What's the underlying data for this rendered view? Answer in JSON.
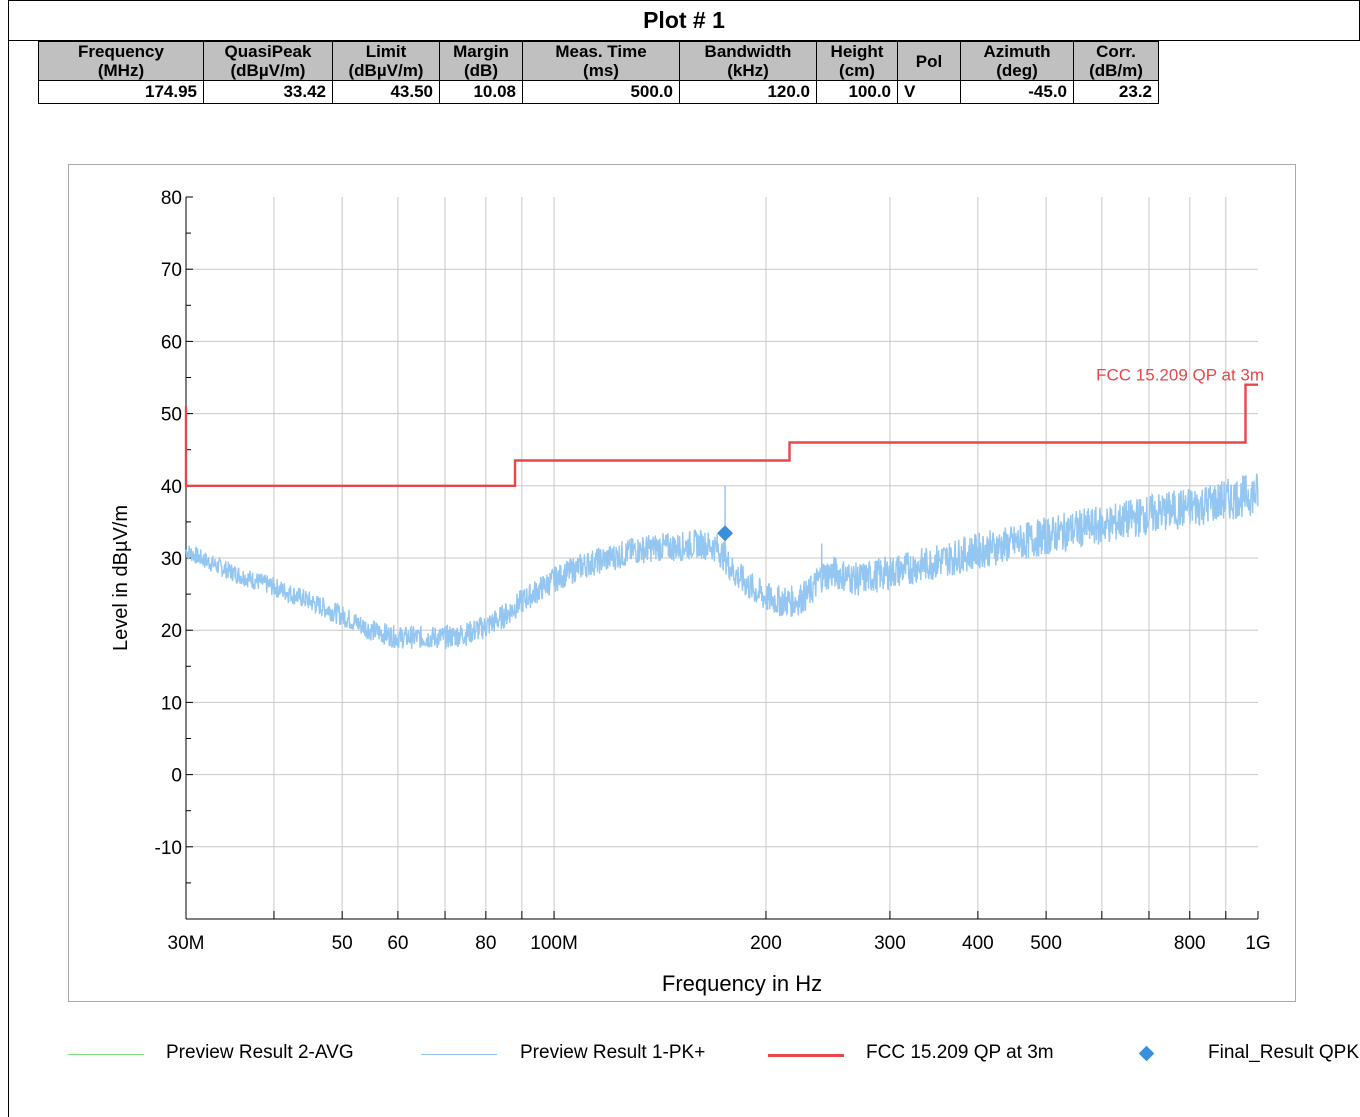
{
  "header": {
    "title": "Plot # 1"
  },
  "table": {
    "columns": [
      {
        "name": "Frequency",
        "unit": "(MHz)"
      },
      {
        "name": "QuasiPeak",
        "unit": "(dBµV/m)"
      },
      {
        "name": "Limit",
        "unit": "(dBµV/m)"
      },
      {
        "name": "Margin",
        "unit": "(dB)"
      },
      {
        "name": "Meas. Time",
        "unit": "(ms)"
      },
      {
        "name": "Bandwidth",
        "unit": "(kHz)"
      },
      {
        "name": "Height",
        "unit": "(cm)"
      },
      {
        "name": "Pol",
        "unit": ""
      },
      {
        "name": "Azimuth",
        "unit": "(deg)"
      },
      {
        "name": "Corr.",
        "unit": "(dB/m)"
      }
    ],
    "row": [
      "174.95",
      "33.42",
      "43.50",
      "10.08",
      "500.0",
      "120.0",
      "100.0",
      "V",
      "-45.0",
      "23.2"
    ]
  },
  "chart_data": {
    "type": "line",
    "xlabel": "Frequency in Hz",
    "ylabel": "Level in dBµV/m",
    "xscale": "log",
    "xlim": [
      30,
      1000
    ],
    "ylim": [
      -20,
      80
    ],
    "yticks": [
      "-10",
      "0",
      "10",
      "20",
      "30",
      "40",
      "50",
      "60",
      "70",
      "80"
    ],
    "xtick_labels": [
      {
        "x": 30,
        "label": "30M"
      },
      {
        "x": 50,
        "label": "50"
      },
      {
        "x": 60,
        "label": "60"
      },
      {
        "x": 80,
        "label": "80"
      },
      {
        "x": 100,
        "label": "100M"
      },
      {
        "x": 200,
        "label": "200"
      },
      {
        "x": 300,
        "label": "300"
      },
      {
        "x": 400,
        "label": "400"
      },
      {
        "x": 500,
        "label": "500"
      },
      {
        "x": 800,
        "label": "800"
      },
      {
        "x": 1000,
        "label": "1G"
      }
    ],
    "grid": true,
    "limit_annotation": "FCC 15.209 QP at 3m",
    "series": [
      {
        "name": "FCC 15.209 QP at 3m",
        "color": "#e8474a",
        "style": "step",
        "x": [
          30,
          30,
          88,
          88,
          216,
          216,
          960,
          960,
          1000
        ],
        "y": [
          51,
          40,
          40,
          43.5,
          43.5,
          46,
          46,
          54,
          54
        ]
      },
      {
        "name": "Preview Result 1-PK+",
        "color": "#93c6f0",
        "style": "noisy",
        "x": [
          30,
          33,
          36,
          40,
          45,
          50,
          55,
          60,
          65,
          70,
          75,
          80,
          85,
          90,
          100,
          110,
          120,
          130,
          140,
          150,
          160,
          170,
          175,
          180,
          190,
          200,
          210,
          220,
          230,
          240,
          250,
          270,
          300,
          350,
          400,
          450,
          500,
          550,
          600,
          700,
          800,
          900,
          1000
        ],
        "y": [
          31,
          29,
          27.5,
          26,
          24,
          22,
          20,
          19,
          19,
          19,
          19.5,
          20.5,
          22,
          24,
          27,
          29,
          30,
          31,
          31.5,
          31.5,
          32,
          31.5,
          30,
          28,
          26,
          24.5,
          24,
          24,
          25,
          27.5,
          28,
          27,
          28,
          29.5,
          31,
          32,
          33,
          34,
          34.5,
          36,
          37,
          38,
          39
        ]
      },
      {
        "name": "Preview Result 2-AVG",
        "color": "#7ee07e",
        "style": "line",
        "x": [],
        "y": []
      },
      {
        "name": "Final_Result QPK",
        "color": "#3a8fd9",
        "style": "marker",
        "x": [
          174.95
        ],
        "y": [
          33.42
        ]
      }
    ],
    "spikes": [
      {
        "x": 174.95,
        "top": 40,
        "base": 30
      },
      {
        "x": 240,
        "top": 32,
        "base": 28
      }
    ],
    "legend": {
      "placement": "bottom",
      "items": [
        {
          "label": "Preview Result 2-AVG",
          "color": "#7ee07e",
          "kind": "line"
        },
        {
          "label": "Preview Result 1-PK+",
          "color": "#93c6f0",
          "kind": "line"
        },
        {
          "label": "FCC 15.209 QP at 3m",
          "color": "#e8474a",
          "kind": "line"
        },
        {
          "label": "Final_Result QPK",
          "color": "#3a8fd9",
          "kind": "marker"
        }
      ]
    }
  }
}
